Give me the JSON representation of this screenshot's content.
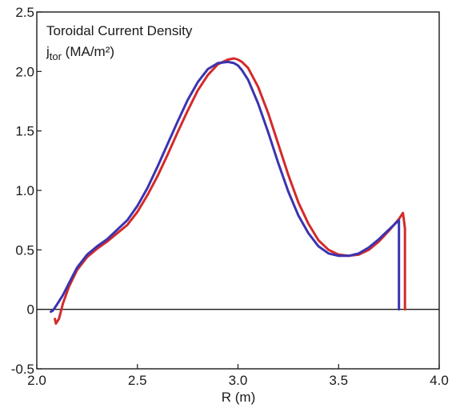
{
  "chart_data": {
    "type": "line",
    "title": "Toroidal Current Density",
    "ylabel_main": "j",
    "ylabel_sub": "tor",
    "ylabel_units": " (MA/m²)",
    "xlabel": "R (m)",
    "xlim": [
      2.0,
      4.0
    ],
    "ylim": [
      -0.5,
      2.5
    ],
    "xticks": [
      "2.0",
      "2.5",
      "3.0",
      "3.5",
      "4.0"
    ],
    "yticks": [
      "-0.5",
      "0",
      "0.5",
      "1.0",
      "1.5",
      "2.0",
      "2.5"
    ],
    "zero_line": true,
    "grid": false,
    "legend": "none",
    "series": [
      {
        "color": "#d42a2a",
        "x": [
          2.09,
          2.095,
          2.11,
          2.13,
          2.16,
          2.2,
          2.25,
          2.3,
          2.35,
          2.4,
          2.45,
          2.5,
          2.55,
          2.6,
          2.65,
          2.7,
          2.75,
          2.8,
          2.85,
          2.9,
          2.95,
          2.98,
          3.0,
          3.02,
          3.05,
          3.1,
          3.15,
          3.2,
          3.25,
          3.3,
          3.35,
          3.4,
          3.45,
          3.5,
          3.55,
          3.6,
          3.65,
          3.7,
          3.75,
          3.8,
          3.82,
          3.83,
          3.83
        ],
        "y": [
          -0.08,
          -0.12,
          -0.08,
          0.05,
          0.19,
          0.33,
          0.44,
          0.51,
          0.57,
          0.64,
          0.71,
          0.82,
          0.96,
          1.12,
          1.3,
          1.49,
          1.67,
          1.84,
          1.97,
          2.06,
          2.1,
          2.11,
          2.1,
          2.08,
          2.03,
          1.87,
          1.65,
          1.39,
          1.13,
          0.9,
          0.72,
          0.58,
          0.5,
          0.46,
          0.45,
          0.46,
          0.5,
          0.57,
          0.66,
          0.76,
          0.81,
          0.68,
          0.0
        ]
      },
      {
        "color": "#3a34b0",
        "x": [
          2.07,
          2.08,
          2.1,
          2.13,
          2.16,
          2.2,
          2.25,
          2.3,
          2.35,
          2.4,
          2.45,
          2.5,
          2.55,
          2.6,
          2.65,
          2.7,
          2.75,
          2.8,
          2.85,
          2.9,
          2.95,
          2.98,
          3.0,
          3.02,
          3.05,
          3.1,
          3.15,
          3.2,
          3.25,
          3.3,
          3.35,
          3.4,
          3.45,
          3.5,
          3.55,
          3.6,
          3.65,
          3.7,
          3.75,
          3.8,
          3.8
        ],
        "y": [
          -0.02,
          -0.01,
          0.04,
          0.12,
          0.22,
          0.35,
          0.46,
          0.53,
          0.59,
          0.67,
          0.75,
          0.87,
          1.02,
          1.2,
          1.39,
          1.58,
          1.76,
          1.91,
          2.02,
          2.07,
          2.08,
          2.07,
          2.05,
          2.01,
          1.93,
          1.73,
          1.49,
          1.23,
          0.99,
          0.79,
          0.64,
          0.53,
          0.47,
          0.45,
          0.45,
          0.47,
          0.52,
          0.59,
          0.67,
          0.75,
          0.0
        ]
      }
    ]
  }
}
